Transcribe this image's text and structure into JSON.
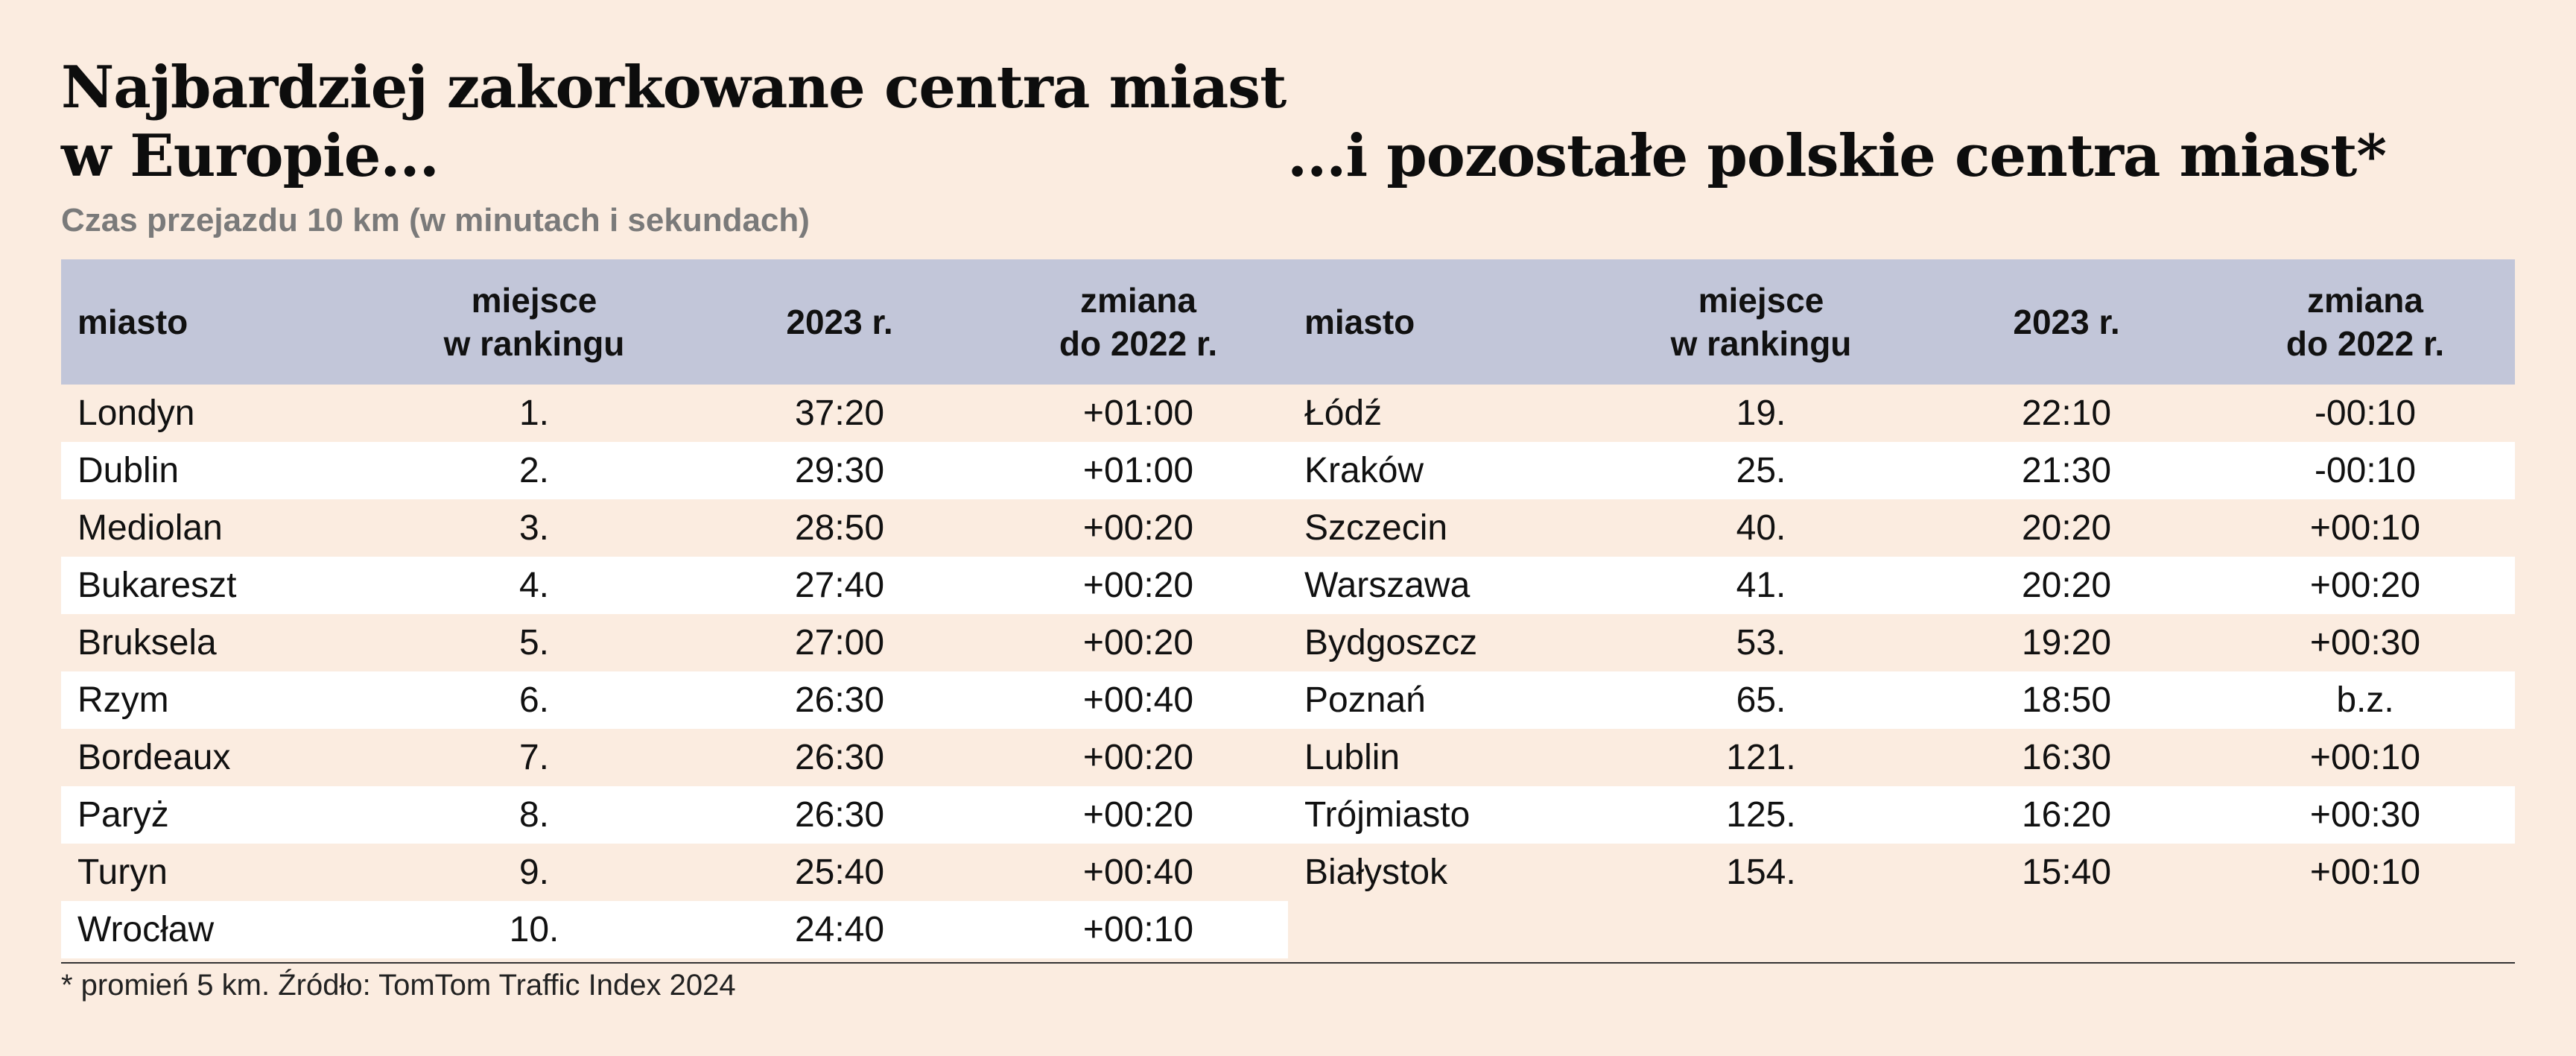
{
  "title_left": "Najbardziej zakorkowane centra miast\nw Europie...",
  "title_right": "...i pozostałe polskie centra miast*",
  "subtitle": "Czas przejazdu 10 km (w minutach i sekundach)",
  "headers": {
    "city": "miasto",
    "rank": "miejsce\nw rankingu",
    "time": "2023 r.",
    "change": "zmiana\ndo 2022 r."
  },
  "europe": [
    {
      "city": "Londyn",
      "rank": "1.",
      "time": "37:20",
      "change": "+01:00"
    },
    {
      "city": "Dublin",
      "rank": "2.",
      "time": "29:30",
      "change": "+01:00"
    },
    {
      "city": "Mediolan",
      "rank": "3.",
      "time": "28:50",
      "change": "+00:20"
    },
    {
      "city": "Bukareszt",
      "rank": "4.",
      "time": "27:40",
      "change": "+00:20"
    },
    {
      "city": "Bruksela",
      "rank": "5.",
      "time": "27:00",
      "change": "+00:20"
    },
    {
      "city": "Rzym",
      "rank": "6.",
      "time": "26:30",
      "change": "+00:40"
    },
    {
      "city": "Bordeaux",
      "rank": "7.",
      "time": "26:30",
      "change": "+00:20"
    },
    {
      "city": "Paryż",
      "rank": "8.",
      "time": "26:30",
      "change": "+00:20"
    },
    {
      "city": "Turyn",
      "rank": "9.",
      "time": "25:40",
      "change": "+00:40"
    },
    {
      "city": "Wrocław",
      "rank": "10.",
      "time": "24:40",
      "change": "+00:10"
    }
  ],
  "poland": [
    {
      "city": "Łódź",
      "rank": "19.",
      "time": "22:10",
      "change": "-00:10"
    },
    {
      "city": "Kraków",
      "rank": "25.",
      "time": "21:30",
      "change": "-00:10"
    },
    {
      "city": "Szczecin",
      "rank": "40.",
      "time": "20:20",
      "change": "+00:10"
    },
    {
      "city": "Warszawa",
      "rank": "41.",
      "time": "20:20",
      "change": "+00:20"
    },
    {
      "city": "Bydgoszcz",
      "rank": "53.",
      "time": "19:20",
      "change": "+00:30"
    },
    {
      "city": "Poznań",
      "rank": "65.",
      "time": "18:50",
      "change": "b.z."
    },
    {
      "city": "Lublin",
      "rank": "121.",
      "time": "16:30",
      "change": "+00:10"
    },
    {
      "city": "Trójmiasto",
      "rank": "125.",
      "time": "16:20",
      "change": "+00:30"
    },
    {
      "city": "Białystok",
      "rank": "154.",
      "time": "15:40",
      "change": "+00:10"
    }
  ],
  "footnote": "* promień 5 km. Źródło: TomTom Traffic Index 2024",
  "colors": {
    "background": "#fbece0",
    "header": "#c2c6d9",
    "row_alt": "#ffffff",
    "subtitle": "#7a7a7a"
  }
}
